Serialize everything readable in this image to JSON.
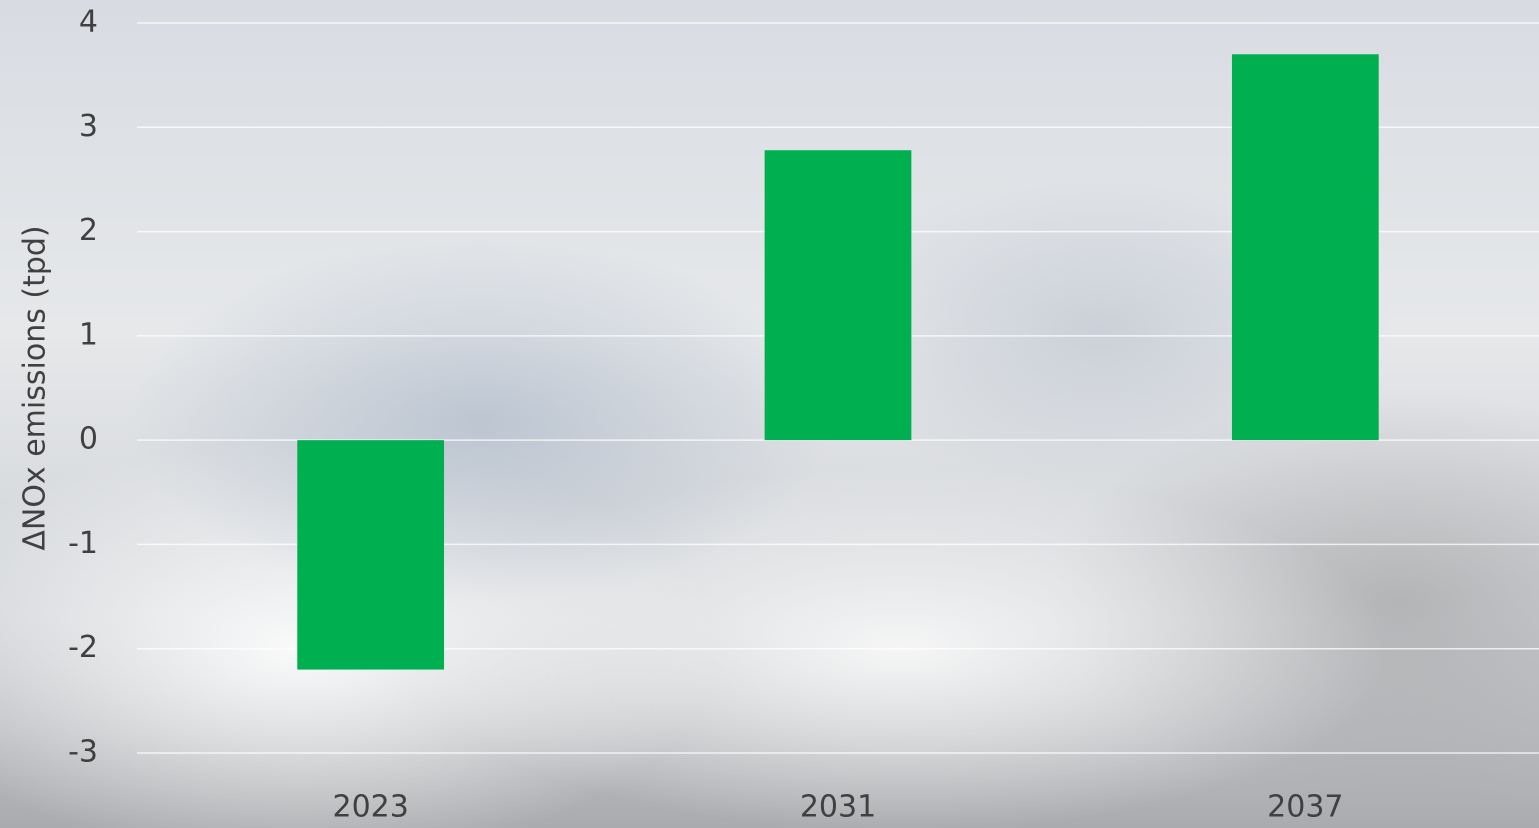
{
  "chart_data": {
    "type": "bar",
    "y_label": "ΔNOx emissions (tpd)",
    "categories": [
      "2023",
      "2031",
      "2037"
    ],
    "values": [
      -2.2,
      2.78,
      3.7
    ],
    "color": "#00b050",
    "ylim": [
      -3,
      4
    ],
    "yticks": [
      -3,
      -2,
      -1,
      0,
      1,
      2,
      3,
      4
    ],
    "grid": true
  }
}
